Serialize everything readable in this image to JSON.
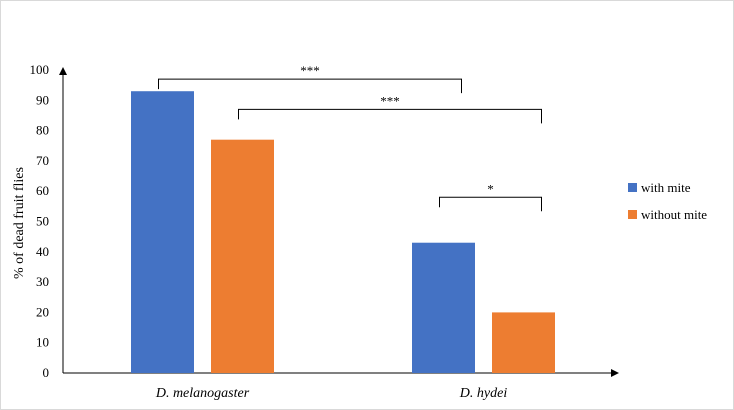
{
  "chart_data": {
    "type": "bar",
    "categories": [
      "D. melanogaster",
      "D. hydei"
    ],
    "series": [
      {
        "name": "with mite",
        "values": [
          93,
          43
        ],
        "color": "#4472C4"
      },
      {
        "name": "without mite",
        "values": [
          77,
          20
        ],
        "color": "#ED7D31"
      }
    ],
    "ylabel": "% of dead fruit  flies",
    "xlabel": "",
    "ylim": [
      0,
      100
    ],
    "yticks": [
      0,
      10,
      20,
      30,
      40,
      50,
      60,
      70,
      80,
      90,
      100
    ],
    "grid": false,
    "legend_position": "right",
    "significance": [
      {
        "label": "***",
        "from": {
          "category": 0,
          "series": 0
        },
        "to": {
          "category": 1,
          "series": 0
        },
        "level": 97
      },
      {
        "label": "***",
        "from": {
          "category": 0,
          "series": 1
        },
        "to": {
          "category": 1,
          "series": 1
        },
        "level": 87
      },
      {
        "label": "*",
        "from": {
          "category": 1,
          "series": 0
        },
        "to": {
          "category": 1,
          "series": 1
        },
        "level": 58
      }
    ]
  }
}
